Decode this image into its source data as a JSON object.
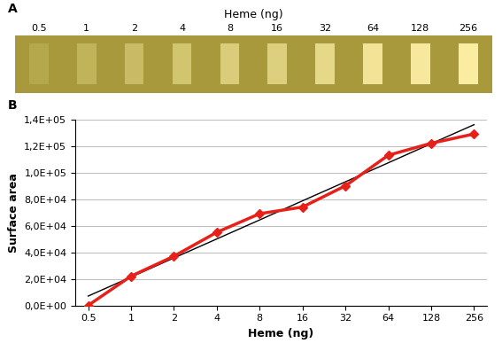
{
  "panels": [
    "A",
    "B"
  ],
  "image_strip": {
    "title": "Heme (ng)",
    "labels": [
      "0.5",
      "1",
      "2",
      "4",
      "8",
      "16",
      "32",
      "64",
      "128",
      "256"
    ]
  },
  "chart_data": {
    "type": "line",
    "x_label": "Heme (ng)",
    "y_label": "Surface area",
    "categories": [
      "0.5",
      "1",
      "2",
      "4",
      "8",
      "16",
      "32",
      "64",
      "128",
      "256"
    ],
    "series": [
      {
        "color": "#e8201a",
        "marker": "diamond",
        "line_style": "solid",
        "values": [
          0,
          22000,
          37000,
          55000,
          69000,
          74000,
          90000,
          113000,
          122000,
          129000
        ]
      },
      {
        "color": "#000000",
        "line_style": "solid",
        "values": [
          7000,
          21300,
          35700,
          50000,
          64300,
          78700,
          93000,
          107300,
          121700,
          136000
        ]
      }
    ],
    "ylim": [
      0,
      140000
    ],
    "yticks": [
      {
        "value": 0,
        "label": "0,0E+00"
      },
      {
        "value": 20000,
        "label": "2,0E+04"
      },
      {
        "value": 40000,
        "label": "4,0E+04"
      },
      {
        "value": 60000,
        "label": "6,0E+04"
      },
      {
        "value": 80000,
        "label": "8,0E+04"
      },
      {
        "value": 100000,
        "label": "1,0E+05"
      },
      {
        "value": 120000,
        "label": "1,2E+05"
      },
      {
        "value": 140000,
        "label": "1,4E+05"
      }
    ],
    "grid": true
  }
}
